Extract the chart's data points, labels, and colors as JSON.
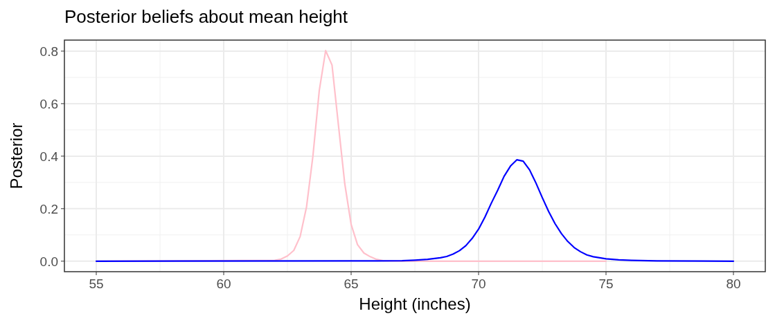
{
  "chart_data": {
    "type": "line",
    "title": "Posterior beliefs about mean height",
    "xlabel": "Height (inches)",
    "ylabel": "Posterior",
    "xlim": [
      53.75,
      81.25
    ],
    "xticks": [
      55,
      60,
      65,
      70,
      75,
      80
    ],
    "ylim": [
      -0.04,
      0.842
    ],
    "yticks": [
      {
        "value": 0,
        "label": "0.0"
      },
      {
        "value": 0.2,
        "label": "0.2"
      },
      {
        "value": 0.4,
        "label": "0.4"
      },
      {
        "value": 0.6,
        "label": "0.6"
      },
      {
        "value": 0.8,
        "label": "0.8"
      }
    ],
    "grid": true,
    "series": [
      {
        "color": "#ffc0cb",
        "x": [
          55,
          62,
          62.25,
          62.5,
          62.75,
          63,
          63.25,
          63.5,
          63.75,
          64,
          64.25,
          64.5,
          64.75,
          65,
          65.25,
          65.5,
          65.75,
          66,
          66.25,
          67,
          75
        ],
        "values": [
          0,
          0.003,
          0.008,
          0.02,
          0.041,
          0.094,
          0.207,
          0.4,
          0.65,
          0.802,
          0.747,
          0.52,
          0.295,
          0.14,
          0.063,
          0.031,
          0.017,
          0.007,
          0.002,
          0,
          0
        ]
      },
      {
        "color": "#0000ff",
        "x": [
          55,
          66,
          67,
          67.5,
          68,
          68.5,
          68.75,
          69,
          69.25,
          69.5,
          69.75,
          70,
          70.25,
          70.5,
          70.75,
          71,
          71.25,
          71.5,
          71.75,
          72,
          72.25,
          72.5,
          72.75,
          73,
          73.25,
          73.5,
          73.75,
          74,
          74.25,
          74.5,
          74.75,
          75,
          75.5,
          76,
          77,
          80
        ],
        "values": [
          0,
          0.001,
          0.002,
          0.004,
          0.007,
          0.013,
          0.018,
          0.027,
          0.04,
          0.059,
          0.087,
          0.122,
          0.168,
          0.221,
          0.27,
          0.323,
          0.362,
          0.386,
          0.381,
          0.348,
          0.298,
          0.242,
          0.189,
          0.143,
          0.105,
          0.075,
          0.052,
          0.036,
          0.024,
          0.017,
          0.013,
          0.009,
          0.005,
          0.003,
          0.001,
          0
        ]
      }
    ]
  }
}
